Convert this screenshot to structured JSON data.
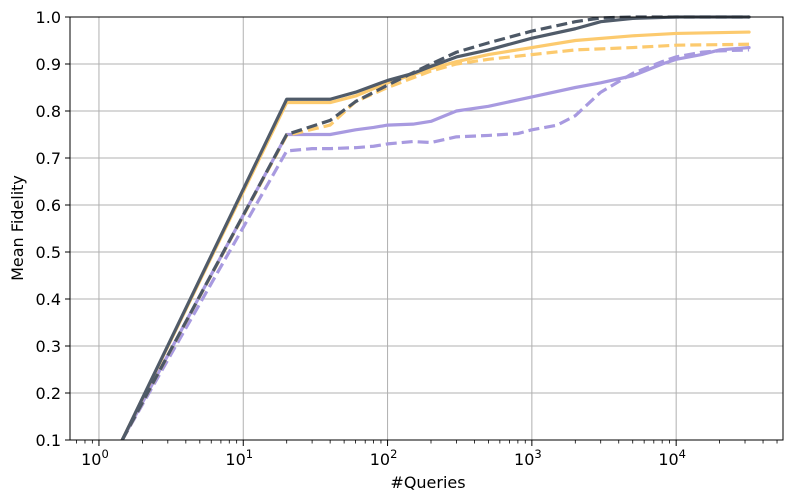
{
  "chart_data": {
    "type": "line",
    "xlabel": "#Queries",
    "ylabel": "Mean Fidelity",
    "xscale": "log",
    "xlim": [
      0.63,
      55000
    ],
    "ylim": [
      0.1,
      1.0
    ],
    "grid": true,
    "legend": "none",
    "xticks": [
      1,
      10,
      100,
      1000,
      10000
    ],
    "xtick_labels": [
      {
        "base": "10",
        "exp": "0"
      },
      {
        "base": "10",
        "exp": "1"
      },
      {
        "base": "10",
        "exp": "2"
      },
      {
        "base": "10",
        "exp": "3"
      },
      {
        "base": "10",
        "exp": "4"
      }
    ],
    "yticks": [
      0.1,
      0.2,
      0.3,
      0.4,
      0.5,
      0.6,
      0.7,
      0.8,
      0.9,
      1.0
    ],
    "ytick_labels": [
      "0.1",
      "0.2",
      "0.3",
      "0.4",
      "0.5",
      "0.6",
      "0.7",
      "0.8",
      "0.9",
      "1.0"
    ],
    "series": [
      {
        "color": "#a89ae0",
        "dash": "dashed",
        "width": 3.2,
        "points": [
          [
            1.45,
            0.1
          ],
          [
            20,
            0.715
          ],
          [
            30,
            0.72
          ],
          [
            40,
            0.72
          ],
          [
            60,
            0.722
          ],
          [
            80,
            0.725
          ],
          [
            100,
            0.73
          ],
          [
            150,
            0.735
          ],
          [
            200,
            0.733
          ],
          [
            300,
            0.745
          ],
          [
            500,
            0.748
          ],
          [
            800,
            0.752
          ],
          [
            1000,
            0.76
          ],
          [
            1500,
            0.77
          ],
          [
            2000,
            0.79
          ],
          [
            3000,
            0.84
          ],
          [
            5000,
            0.88
          ],
          [
            8000,
            0.905
          ],
          [
            10000,
            0.915
          ],
          [
            15000,
            0.925
          ],
          [
            20000,
            0.928
          ],
          [
            32000,
            0.93
          ]
        ]
      },
      {
        "color": "#a89ae0",
        "dash": "solid",
        "width": 3.2,
        "points": [
          [
            1.45,
            0.1
          ],
          [
            20,
            0.75
          ],
          [
            40,
            0.75
          ],
          [
            60,
            0.76
          ],
          [
            80,
            0.765
          ],
          [
            100,
            0.77
          ],
          [
            150,
            0.772
          ],
          [
            200,
            0.778
          ],
          [
            300,
            0.8
          ],
          [
            500,
            0.81
          ],
          [
            1000,
            0.83
          ],
          [
            2000,
            0.85
          ],
          [
            3000,
            0.86
          ],
          [
            5000,
            0.875
          ],
          [
            8000,
            0.9
          ],
          [
            10000,
            0.91
          ],
          [
            15000,
            0.92
          ],
          [
            20000,
            0.93
          ],
          [
            32000,
            0.935
          ]
        ]
      },
      {
        "color": "#fcca6e",
        "dash": "dashed",
        "width": 3.2,
        "points": [
          [
            1.45,
            0.1
          ],
          [
            20,
            0.748
          ],
          [
            40,
            0.77
          ],
          [
            60,
            0.82
          ],
          [
            100,
            0.85
          ],
          [
            200,
            0.885
          ],
          [
            300,
            0.9
          ],
          [
            500,
            0.91
          ],
          [
            1000,
            0.92
          ],
          [
            2000,
            0.93
          ],
          [
            5000,
            0.935
          ],
          [
            10000,
            0.94
          ],
          [
            32000,
            0.942
          ]
        ]
      },
      {
        "color": "#fcca6e",
        "dash": "solid",
        "width": 3.2,
        "points": [
          [
            1.45,
            0.1
          ],
          [
            20,
            0.818
          ],
          [
            40,
            0.818
          ],
          [
            60,
            0.832
          ],
          [
            100,
            0.86
          ],
          [
            200,
            0.89
          ],
          [
            300,
            0.905
          ],
          [
            500,
            0.92
          ],
          [
            1000,
            0.935
          ],
          [
            2000,
            0.95
          ],
          [
            5000,
            0.96
          ],
          [
            10000,
            0.965
          ],
          [
            32000,
            0.968
          ]
        ]
      },
      {
        "color": "#4d5866",
        "dash": "dashed",
        "width": 3.2,
        "points": [
          [
            1.45,
            0.1
          ],
          [
            20,
            0.75
          ],
          [
            40,
            0.78
          ],
          [
            60,
            0.82
          ],
          [
            100,
            0.855
          ],
          [
            200,
            0.9
          ],
          [
            300,
            0.925
          ],
          [
            500,
            0.945
          ],
          [
            1000,
            0.97
          ],
          [
            2000,
            0.99
          ],
          [
            3000,
            0.998
          ],
          [
            5000,
            1.0
          ],
          [
            32000,
            1.0
          ]
        ]
      },
      {
        "color": "#505b69",
        "dash": "solid",
        "width": 3.2,
        "points": [
          [
            1.45,
            0.1
          ],
          [
            20,
            0.825
          ],
          [
            40,
            0.825
          ],
          [
            60,
            0.84
          ],
          [
            100,
            0.865
          ],
          [
            150,
            0.88
          ],
          [
            200,
            0.895
          ],
          [
            300,
            0.915
          ],
          [
            500,
            0.93
          ],
          [
            1000,
            0.955
          ],
          [
            2000,
            0.975
          ],
          [
            3000,
            0.99
          ],
          [
            5000,
            0.997
          ],
          [
            10000,
            1.0
          ],
          [
            32000,
            1.0
          ]
        ]
      }
    ]
  }
}
